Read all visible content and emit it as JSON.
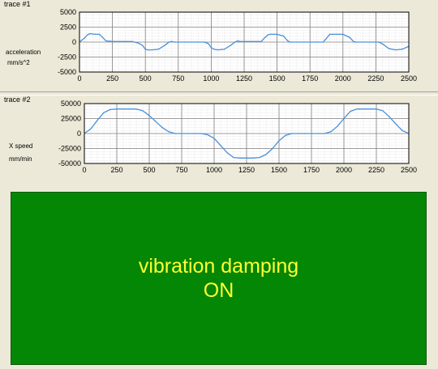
{
  "trace1": {
    "title": "trace #1",
    "ylabel_line1": "acceleration",
    "ylabel_line2": "mm/s^2"
  },
  "trace2": {
    "title": "trace #2",
    "ylabel_line1": "X speed",
    "ylabel_line2": "mm/min"
  },
  "status": {
    "line1": "vibration damping",
    "line2": "ON",
    "background": "#048704",
    "text_color": "#ffff33"
  },
  "chart_data": [
    {
      "type": "line",
      "title": "trace #1",
      "xlabel": "",
      "ylabel": "acceleration mm/s^2",
      "xlim": [
        0,
        2500
      ],
      "ylim": [
        -5000,
        5000
      ],
      "xticks": [
        "0",
        "250",
        "500",
        "750",
        "1000",
        "1250",
        "1500",
        "1750",
        "2000",
        "2250",
        "2500"
      ],
      "yticks": [
        "5000",
        "2500",
        "0",
        "-2500",
        "-5000"
      ],
      "grid": true,
      "series": [
        {
          "color": "#4a90d9",
          "x": [
            0,
            40,
            60,
            80,
            100,
            120,
            150,
            180,
            200,
            260,
            300,
            400,
            450,
            480,
            500,
            520,
            550,
            600,
            650,
            680,
            700,
            720,
            750,
            800,
            900,
            950,
            980,
            1000,
            1020,
            1050,
            1100,
            1150,
            1180,
            1200,
            1220,
            1250,
            1300,
            1380,
            1400,
            1430,
            1450,
            1500,
            1550,
            1580,
            1600,
            1650,
            1700,
            1800,
            1850,
            1870,
            1900,
            1950,
            2000,
            2050,
            2080,
            2100,
            2200,
            2270,
            2300,
            2350,
            2400,
            2450,
            2500
          ],
          "y": [
            0,
            700,
            1200,
            1400,
            1350,
            1300,
            1300,
            700,
            200,
            100,
            100,
            100,
            -200,
            -600,
            -1200,
            -1300,
            -1300,
            -1200,
            -500,
            0,
            100,
            0,
            0,
            0,
            0,
            0,
            -300,
            -900,
            -1200,
            -1300,
            -1200,
            -500,
            0,
            200,
            100,
            100,
            100,
            100,
            600,
            1200,
            1300,
            1300,
            1000,
            200,
            0,
            0,
            0,
            0,
            0,
            500,
            1300,
            1300,
            1300,
            800,
            100,
            0,
            0,
            0,
            -300,
            -1100,
            -1300,
            -1200,
            -700
          ]
        }
      ]
    },
    {
      "type": "line",
      "title": "trace #2",
      "xlabel": "",
      "ylabel": "X speed mm/min",
      "xlim": [
        0,
        2500
      ],
      "ylim": [
        -50000,
        50000
      ],
      "xticks": [
        "0",
        "250",
        "500",
        "750",
        "1000",
        "1250",
        "1500",
        "1750",
        "2000",
        "2250",
        "2500"
      ],
      "yticks": [
        "50000",
        "25000",
        "0",
        "-25000",
        "-50000"
      ],
      "grid": true,
      "series": [
        {
          "color": "#4a90d9",
          "x": [
            0,
            50,
            100,
            150,
            200,
            250,
            300,
            400,
            450,
            500,
            550,
            600,
            650,
            700,
            750,
            850,
            900,
            950,
            1000,
            1050,
            1100,
            1150,
            1200,
            1250,
            1300,
            1350,
            1400,
            1450,
            1500,
            1550,
            1600,
            1650,
            1700,
            1800,
            1850,
            1900,
            1950,
            2000,
            2050,
            2100,
            2200,
            2250,
            2300,
            2350,
            2400,
            2450,
            2500
          ],
          "y": [
            0,
            8000,
            22000,
            35000,
            40000,
            41000,
            41000,
            41000,
            38000,
            30000,
            20000,
            10000,
            3000,
            0,
            0,
            0,
            0,
            -2000,
            -8000,
            -20000,
            -32000,
            -40000,
            -41000,
            -41000,
            -41000,
            -40000,
            -35000,
            -25000,
            -12000,
            -3000,
            0,
            0,
            0,
            0,
            0,
            3000,
            12000,
            25000,
            37000,
            41000,
            41000,
            41000,
            38000,
            28000,
            16000,
            5000,
            0
          ]
        }
      ]
    }
  ]
}
